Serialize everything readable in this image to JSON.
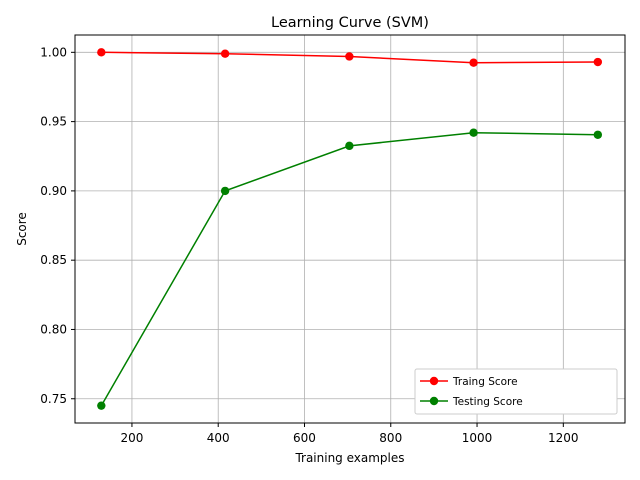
{
  "chart_data": {
    "type": "line",
    "title": "Learning Curve (SVM)",
    "xlabel": "Training examples",
    "ylabel": "Score",
    "xlim": [
      68,
      1343
    ],
    "ylim": [
      0.7325,
      1.0125
    ],
    "xticks": [
      200,
      400,
      600,
      800,
      1000,
      1200
    ],
    "yticks": [
      0.75,
      0.8,
      0.85,
      0.9,
      0.95,
      1.0
    ],
    "ytick_labels": [
      "0.75",
      "0.80",
      "0.85",
      "0.90",
      "0.95",
      "1.00"
    ],
    "grid": true,
    "legend_position": "lower right",
    "x": [
      129,
      416,
      704,
      992,
      1280
    ],
    "series": [
      {
        "name": "Traing Score",
        "color": "#ff0000",
        "marker": "circle",
        "values": [
          1.0,
          0.999,
          0.997,
          0.9925,
          0.993
        ]
      },
      {
        "name": "Testing Score",
        "color": "#008000",
        "marker": "circle",
        "values": [
          0.745,
          0.9,
          0.9325,
          0.942,
          0.9405
        ]
      }
    ]
  }
}
